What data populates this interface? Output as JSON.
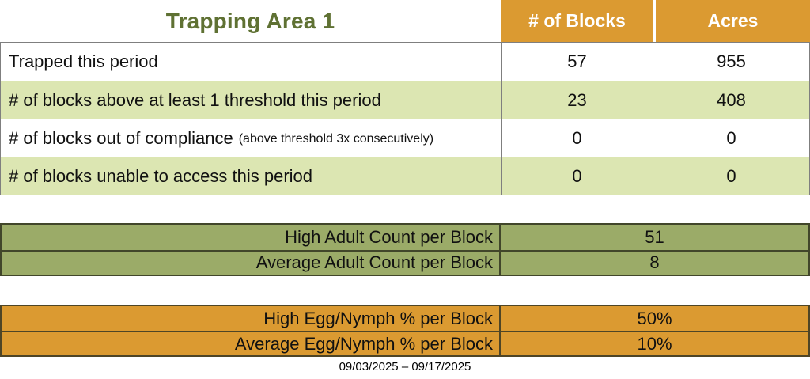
{
  "header": {
    "title": "Trapping Area 1",
    "col_blocks": "# of Blocks",
    "col_acres": "Acres"
  },
  "main_table": {
    "rows": [
      {
        "label": "Trapped this period",
        "blocks": "57",
        "acres": "955"
      },
      {
        "label": "# of blocks above at least 1 threshold this period",
        "blocks": "23",
        "acres": "408"
      },
      {
        "label": "# of blocks out of compliance",
        "note": "(above threshold 3x consecutively)",
        "blocks": "0",
        "acres": "0"
      },
      {
        "label": "# of blocks unable to access this period",
        "blocks": "0",
        "acres": "0"
      }
    ]
  },
  "adult_table": {
    "rows": [
      {
        "label": "High Adult Count per Block",
        "value": "51"
      },
      {
        "label": "Average Adult Count per Block",
        "value": "8"
      }
    ]
  },
  "egg_table": {
    "rows": [
      {
        "label": "High Egg/Nymph % per Block",
        "value": "50%"
      },
      {
        "label": "Average Egg/Nymph % per Block",
        "value": "10%"
      }
    ]
  },
  "footer": {
    "date_range": "09/03/2025 – 09/17/2025"
  },
  "colors": {
    "orange": "#DB9A31",
    "light_green": "#DCE6B2",
    "olive": "#9BAB68",
    "title_green": "#5F7133",
    "grid_gray": "#7F7F7F"
  }
}
